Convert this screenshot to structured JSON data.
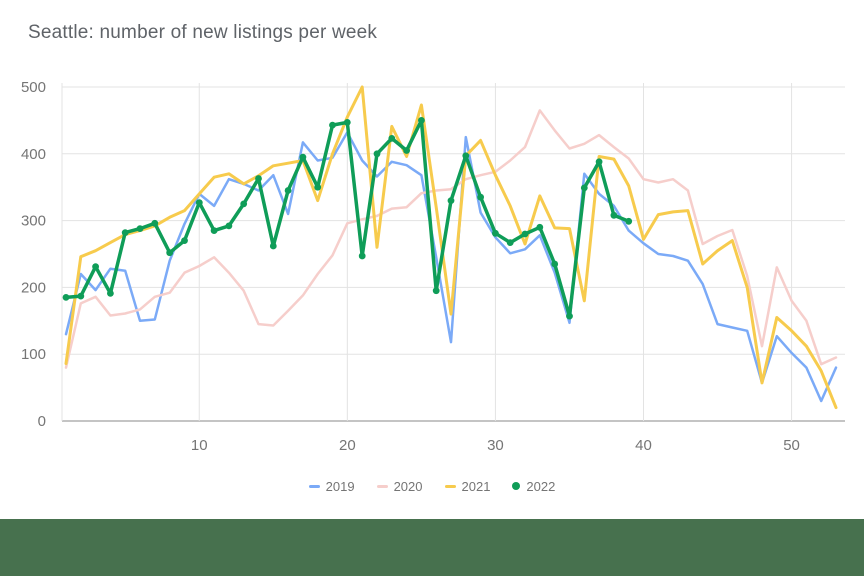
{
  "title": "Seattle: number of new listings per week",
  "footer_bar": {
    "color": "#47714e"
  },
  "chart_data": {
    "type": "line",
    "title": "Seattle: number of new listings per week",
    "xlabel": "",
    "ylabel": "",
    "grid": true,
    "legend_position": "bottom",
    "x_axis": {
      "min": 1,
      "max": 53,
      "ticks": [
        10,
        20,
        30,
        40,
        50
      ]
    },
    "y_axis": {
      "min": 0,
      "max": 500,
      "ticks": [
        0,
        100,
        200,
        300,
        400,
        500
      ]
    },
    "axis_label_color": "#757575",
    "gridline_color": "#e3e3e3",
    "baseline_color": "#b0b0b0",
    "series": [
      {
        "name": "2019",
        "color": "#7baaf7",
        "marker": "line",
        "stroke_width": 2.5,
        "x_start": 1,
        "values": [
          130,
          220,
          196,
          228,
          225,
          150,
          152,
          240,
          295,
          340,
          322,
          362,
          355,
          345,
          368,
          310,
          417,
          390,
          394,
          432,
          390,
          366,
          388,
          383,
          368,
          245,
          118,
          425,
          312,
          275,
          251,
          257,
          278,
          222,
          147,
          370,
          340,
          322,
          285,
          266,
          250,
          247,
          240,
          205,
          145,
          140,
          135,
          57,
          127,
          102,
          80,
          30,
          80
        ]
      },
      {
        "name": "2020",
        "color": "#f6cecb",
        "marker": "line",
        "stroke_width": 2.5,
        "x_start": 1,
        "values": [
          80,
          176,
          186,
          158,
          161,
          167,
          186,
          192,
          222,
          232,
          245,
          222,
          195,
          145,
          143,
          165,
          188,
          220,
          248,
          296,
          302,
          307,
          318,
          320,
          341,
          345,
          347,
          362,
          368,
          373,
          390,
          410,
          465,
          435,
          408,
          415,
          428,
          410,
          393,
          362,
          357,
          362,
          345,
          265,
          277,
          286,
          217,
          112,
          230,
          180,
          150,
          85,
          95
        ]
      },
      {
        "name": "2021",
        "color": "#f7cb4d",
        "marker": "line",
        "stroke_width": 3,
        "x_start": 1,
        "values": [
          86,
          246,
          255,
          267,
          279,
          285,
          292,
          305,
          315,
          340,
          365,
          370,
          355,
          367,
          382,
          386,
          390,
          330,
          400,
          455,
          500,
          260,
          441,
          396,
          473,
          320,
          160,
          397,
          420,
          368,
          322,
          265,
          337,
          289,
          288,
          180,
          396,
          392,
          352,
          272,
          309,
          313,
          315,
          235,
          255,
          270,
          200,
          57,
          155,
          135,
          112,
          75,
          20
        ]
      },
      {
        "name": "2022",
        "color": "#0f9d58",
        "marker": "circle",
        "stroke_width": 3.5,
        "x_start": 1,
        "values": [
          185,
          187,
          231,
          191,
          282,
          288,
          296,
          252,
          270,
          327,
          285,
          292,
          325,
          363,
          262,
          345,
          395,
          350,
          443,
          447,
          247,
          400,
          423,
          405,
          450,
          195,
          330,
          397,
          335,
          281,
          267,
          280,
          290,
          235,
          157,
          349,
          388,
          308,
          299
        ]
      }
    ]
  }
}
